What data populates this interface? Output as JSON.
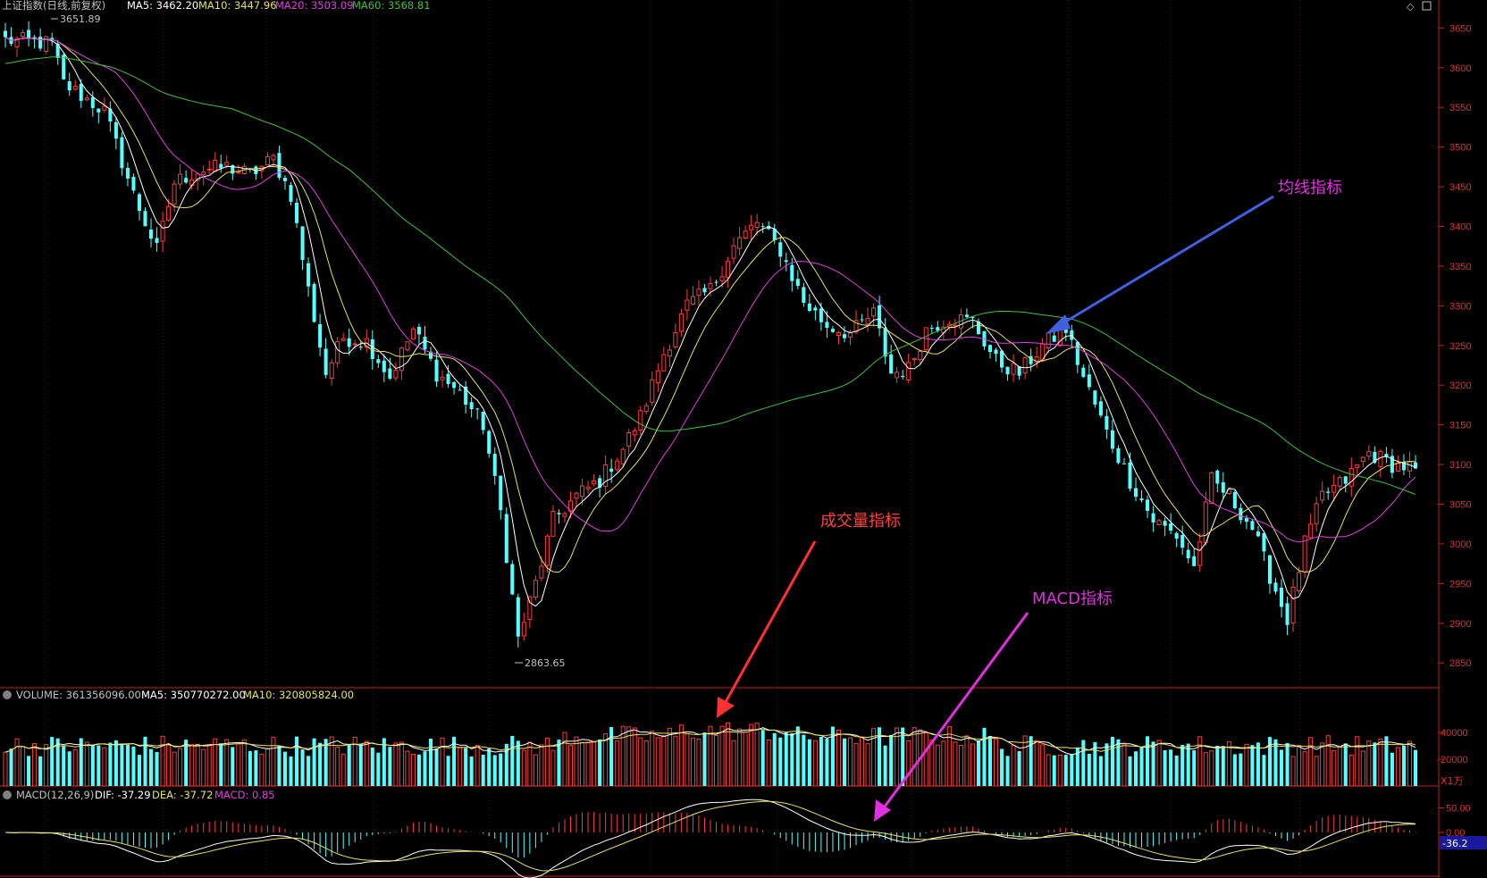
{
  "header": {
    "title": "上证指数(日线,前复权)",
    "ma5": "MA5: 3462.20",
    "ma10": "MA10: 3447.96",
    "ma20": "MA20: 3503.09",
    "ma60": "MA60: 3568.81",
    "high_marker": "3651.89",
    "low_marker": "2863.65"
  },
  "volume_header": {
    "volume": "VOLUME: 361356096.00",
    "ma5": "MA5: 350770272.00",
    "ma10": "MA10: 320805824.00",
    "unit": "X1万"
  },
  "macd_header": {
    "title": "MACD(12,26,9)",
    "dif": "DIF: -37.29",
    "dea": "DEA: -37.72",
    "macd": "MACD: 0.85",
    "current_value": "-36.2"
  },
  "annotations": {
    "ma": "均线指标",
    "volume": "成交量指标",
    "macd": "MACD指标"
  },
  "colors": {
    "up": "#ff3b3b",
    "down": "#54ffff",
    "ma5": "#ffffff",
    "ma10": "#e8e060",
    "ma20": "#e040e0",
    "ma60": "#40c040",
    "axis": "#c02020",
    "blue_arrow": "#4060e0",
    "red_arrow": "#ff3030",
    "magenta_arrow": "#e030e0"
  },
  "chart_data": [
    {
      "type": "candlestick",
      "title": "上证指数(日线,前复权)",
      "y_ticks": [
        3650,
        3600,
        3550,
        3500,
        3450,
        3400,
        3350,
        3300,
        3250,
        3200,
        3150,
        3100,
        3050,
        3000,
        2950,
        2900,
        2850
      ],
      "ylim": [
        2830,
        3665
      ],
      "series_names": [
        "MA5",
        "MA10",
        "MA20",
        "MA60"
      ],
      "close_anchors": [
        [
          0,
          3635
        ],
        [
          8,
          3630
        ],
        [
          10,
          3580
        ],
        [
          17,
          3545
        ],
        [
          22,
          3440
        ],
        [
          26,
          3370
        ],
        [
          29,
          3455
        ],
        [
          33,
          3470
        ],
        [
          38,
          3475
        ],
        [
          42,
          3465
        ],
        [
          46,
          3485
        ],
        [
          49,
          3440
        ],
        [
          52,
          3320
        ],
        [
          55,
          3215
        ],
        [
          58,
          3260
        ],
        [
          62,
          3255
        ],
        [
          66,
          3210
        ],
        [
          70,
          3270
        ],
        [
          74,
          3215
        ],
        [
          78,
          3190
        ],
        [
          82,
          3150
        ],
        [
          85,
          3040
        ],
        [
          88,
          2880
        ],
        [
          91,
          2950
        ],
        [
          94,
          3030
        ],
        [
          98,
          3060
        ],
        [
          102,
          3080
        ],
        [
          106,
          3120
        ],
        [
          109,
          3160
        ],
        [
          113,
          3240
        ],
        [
          117,
          3300
        ],
        [
          121,
          3320
        ],
        [
          125,
          3375
        ],
        [
          129,
          3405
        ],
        [
          133,
          3370
        ],
        [
          137,
          3305
        ],
        [
          141,
          3275
        ],
        [
          145,
          3265
        ],
        [
          149,
          3290
        ],
        [
          152,
          3215
        ],
        [
          155,
          3220
        ],
        [
          158,
          3270
        ],
        [
          162,
          3285
        ],
        [
          166,
          3280
        ],
        [
          170,
          3230
        ],
        [
          174,
          3215
        ],
        [
          178,
          3250
        ],
        [
          182,
          3270
        ],
        [
          185,
          3210
        ],
        [
          189,
          3140
        ],
        [
          193,
          3080
        ],
        [
          197,
          3030
        ],
        [
          201,
          3010
        ],
        [
          204,
          2970
        ],
        [
          207,
          3080
        ],
        [
          210,
          3060
        ],
        [
          214,
          3020
        ],
        [
          217,
          2960
        ],
        [
          220,
          2905
        ],
        [
          223,
          3000
        ],
        [
          226,
          3060
        ],
        [
          230,
          3080
        ],
        [
          234,
          3115
        ],
        [
          238,
          3100
        ],
        [
          242,
          3095
        ]
      ]
    },
    {
      "type": "bar",
      "title": "VOLUME",
      "y_ticks": [
        40000,
        20000
      ],
      "unit": "X1万",
      "ylim": [
        0,
        60000
      ]
    },
    {
      "type": "histogram",
      "title": "MACD(12,26,9)",
      "y_ticks": [
        50.0,
        0.0
      ],
      "ylim": [
        -80,
        70
      ]
    }
  ]
}
